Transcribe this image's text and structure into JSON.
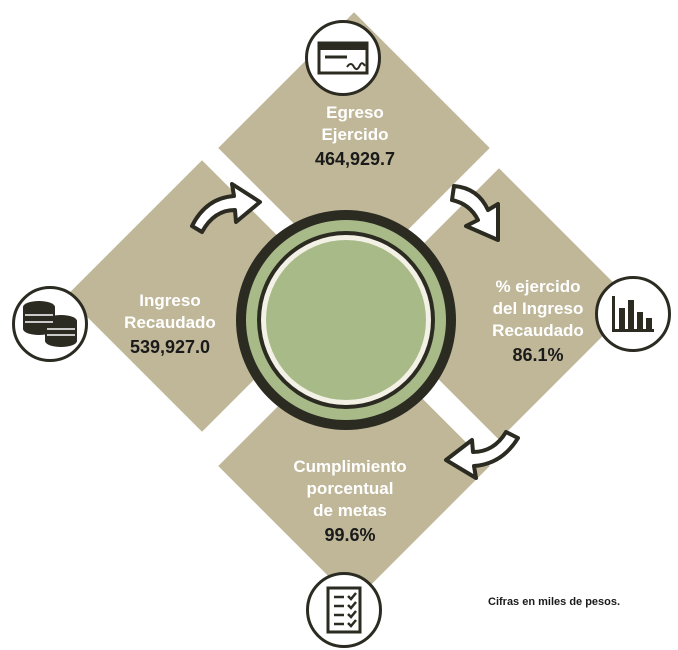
{
  "egreso": {
    "label_line1": "Egreso",
    "label_line2": "Ejercido",
    "value": "464,929.7"
  },
  "ingreso": {
    "label_line1": "Ingreso",
    "label_line2": "Recaudado",
    "value": "539,927.0"
  },
  "porcentaje": {
    "label_line1": "% ejercido",
    "label_line2": "del Ingreso",
    "label_line3": "Recaudado",
    "value": "86.1%"
  },
  "cumplimiento": {
    "label_line1": "Cumplimiento",
    "label_line2": "porcentual",
    "label_line3": "de metas",
    "value": "99.6%"
  },
  "note": "Cifras en miles de pesos.",
  "colors": {
    "diamond": "#bfb798",
    "center": "#a8ba88",
    "dark": "#2b2b22"
  },
  "icons": [
    "check-icon",
    "coins-icon",
    "bar-chart-icon",
    "checklist-icon",
    "curved-arrow-icon"
  ]
}
